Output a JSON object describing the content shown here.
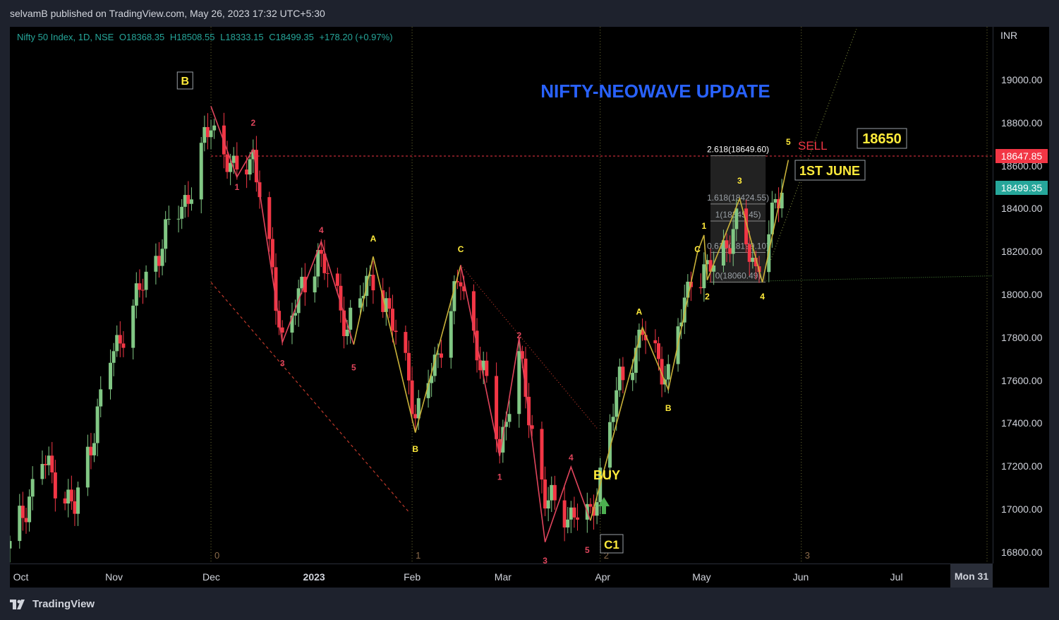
{
  "header": {
    "publisher": "selvamB published on TradingView.com, May 26, 2023 17:32 UTC+5:30"
  },
  "legend": {
    "symbol": "Nifty 50 Index, 1D, NSE",
    "open": "O18368.35",
    "high": "H18508.55",
    "low": "L18333.15",
    "close": "C18499.35",
    "change": "+178.20 (+0.97%)"
  },
  "price_axis": {
    "currency": "INR",
    "last_price_badge": "18499.35",
    "level_badge": "18647.85",
    "colors": {
      "last": "#26a69a",
      "level": "#f23645"
    }
  },
  "time_axis": {
    "cursor_label": "Mon 31"
  },
  "footer": {
    "brand": "TradingView"
  },
  "annotations": {
    "title": "NIFTY-NEOWAVE UPDATE",
    "sell": "SELL",
    "target": "18650",
    "date": "1ST JUNE",
    "buy": "BUY",
    "wave_B_box": "B",
    "wave_C1_box": "C1",
    "fib_2618": "2.618(18649.60)",
    "fib_1618": "1.618(18424.55)",
    "fib_1": "1(18345.45)",
    "fib_0618": "0.618(18199.10)",
    "fib_0": "0(18060.49)"
  },
  "colors": {
    "up": "#81c784",
    "down": "#f23645",
    "yellow_wave": "#c9b23a",
    "red_wave": "#e0455c",
    "title": "#2962ff",
    "label_yellow": "#ffeb3b"
  },
  "chart_data": {
    "type": "candlestick",
    "title": "Nifty 50 Index, 1D, NSE",
    "y_unit": "INR",
    "ylim": [
      16750,
      19250
    ],
    "y_ticks": [
      16800,
      17000,
      17200,
      17400,
      17600,
      17800,
      18000,
      18200,
      18400,
      18600,
      18800,
      19000
    ],
    "x_ticks": [
      {
        "label": "Oct",
        "date": "2022-10-01"
      },
      {
        "label": "Nov",
        "date": "2022-11-01"
      },
      {
        "label": "Dec",
        "date": "2022-12-01"
      },
      {
        "label": "2023",
        "date": "2023-01-01"
      },
      {
        "label": "Feb",
        "date": "2023-02-01"
      },
      {
        "label": "Mar",
        "date": "2023-03-01"
      },
      {
        "label": "Apr",
        "date": "2023-04-01"
      },
      {
        "label": "May",
        "date": "2023-05-01"
      },
      {
        "label": "Jun",
        "date": "2023-06-01"
      },
      {
        "label": "Jul",
        "date": "2023-07-01"
      }
    ],
    "x_range": [
      "2022-09-30",
      "2023-07-30"
    ],
    "close_path": [
      {
        "date": "2022-09-30",
        "close": 16820
      },
      {
        "date": "2022-10-10",
        "close": 17230
      },
      {
        "date": "2022-10-20",
        "close": 17000
      },
      {
        "date": "2022-10-31",
        "close": 17700
      },
      {
        "date": "2022-11-10",
        "close": 18050
      },
      {
        "date": "2022-11-18",
        "close": 18310
      },
      {
        "date": "2022-11-25",
        "close": 18500
      },
      {
        "date": "2022-12-01",
        "close": 18810
      },
      {
        "date": "2022-12-08",
        "close": 18560
      },
      {
        "date": "2022-12-14",
        "close": 18660
      },
      {
        "date": "2022-12-23",
        "close": 17800
      },
      {
        "date": "2023-01-03",
        "close": 18200
      },
      {
        "date": "2023-01-12",
        "close": 17860
      },
      {
        "date": "2023-01-20",
        "close": 18100
      },
      {
        "date": "2023-01-31",
        "close": 17650
      },
      {
        "date": "2023-02-02",
        "close": 17400
      },
      {
        "date": "2023-02-16",
        "close": 18080
      },
      {
        "date": "2023-02-28",
        "close": 17300
      },
      {
        "date": "2023-03-06",
        "close": 17700
      },
      {
        "date": "2023-03-14",
        "close": 17050
      },
      {
        "date": "2023-03-20",
        "close": 16990
      },
      {
        "date": "2023-03-28",
        "close": 16960
      },
      {
        "date": "2023-04-06",
        "close": 17600
      },
      {
        "date": "2023-04-13",
        "close": 17820
      },
      {
        "date": "2023-04-21",
        "close": 17620
      },
      {
        "date": "2023-04-28",
        "close": 18100
      },
      {
        "date": "2023-05-03",
        "close": 18100
      },
      {
        "date": "2023-05-12",
        "close": 18320
      },
      {
        "date": "2023-05-18",
        "close": 18130
      },
      {
        "date": "2023-05-23",
        "close": 18350
      },
      {
        "date": "2023-05-26",
        "close": 18499.35
      }
    ],
    "wave_labels": [
      {
        "text": "B",
        "date": "2022-11-23",
        "price": 19000,
        "style": "box"
      },
      {
        "text": "2",
        "date": "2022-12-14",
        "price": 18790,
        "style": "red"
      },
      {
        "text": "1",
        "date": "2022-12-09",
        "price": 18490,
        "style": "red"
      },
      {
        "text": "4",
        "date": "2023-01-04",
        "price": 18290,
        "style": "red"
      },
      {
        "text": "3",
        "date": "2022-12-23",
        "price": 17670,
        "style": "red"
      },
      {
        "text": "5",
        "date": "2023-01-14",
        "price": 17650,
        "style": "red"
      },
      {
        "text": "A",
        "date": "2023-01-20",
        "price": 18250,
        "style": "yellow"
      },
      {
        "text": "C",
        "date": "2023-02-16",
        "price": 18200,
        "style": "yellow"
      },
      {
        "text": "B",
        "date": "2023-02-02",
        "price": 17270,
        "style": "yellow"
      },
      {
        "text": "2",
        "date": "2023-03-06",
        "price": 17800,
        "style": "red"
      },
      {
        "text": "1",
        "date": "2023-02-28",
        "price": 17140,
        "style": "red"
      },
      {
        "text": "4",
        "date": "2023-03-22",
        "price": 17230,
        "style": "red"
      },
      {
        "text": "3",
        "date": "2023-03-14",
        "price": 16750,
        "style": "red"
      },
      {
        "text": "5",
        "date": "2023-03-27",
        "price": 16800,
        "style": "red"
      },
      {
        "text": "A",
        "date": "2023-04-12",
        "price": 17910,
        "style": "yellow"
      },
      {
        "text": "B",
        "date": "2023-04-21",
        "price": 17460,
        "style": "yellow"
      },
      {
        "text": "C",
        "date": "2023-04-30",
        "price": 18200,
        "style": "yellow"
      },
      {
        "text": "1",
        "date": "2023-05-02",
        "price": 18310,
        "style": "yellow"
      },
      {
        "text": "2",
        "date": "2023-05-03",
        "price": 17980,
        "style": "yellow"
      },
      {
        "text": "3",
        "date": "2023-05-13",
        "price": 18520,
        "style": "yellow"
      },
      {
        "text": "4",
        "date": "2023-05-20",
        "price": 17980,
        "style": "yellow"
      },
      {
        "text": "5",
        "date": "2023-05-28",
        "price": 18700,
        "style": "yellow"
      }
    ],
    "cycle_labels": [
      {
        "text": "0",
        "date": "2022-12-01"
      },
      {
        "text": "1",
        "date": "2023-02-01"
      },
      {
        "text": "2",
        "date": "2023-03-31"
      },
      {
        "text": "3",
        "date": "2023-06-01"
      }
    ],
    "levels": {
      "sell": 18647.85,
      "support": 18060.49
    },
    "fib_levels": [
      {
        "label": "2.618(18649.60)",
        "price": 18649.6
      },
      {
        "label": "1.618(18424.55)",
        "price": 18424.55
      },
      {
        "label": "1(18345.45)",
        "price": 18345.45
      },
      {
        "label": "0.618(18199.10)",
        "price": 18199.1
      },
      {
        "label": "0(18060.49)",
        "price": 18060.49
      }
    ]
  }
}
